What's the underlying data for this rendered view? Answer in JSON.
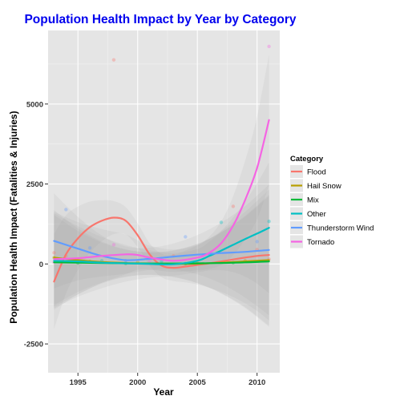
{
  "chart_data": {
    "type": "line",
    "title": "Population Health Impact by Year by Category",
    "xlabel": "Year",
    "ylabel": "Population Health Impact (Fatalities & Injuries)",
    "xlim": [
      1992.5,
      2011.9
    ],
    "ylim": [
      -3400,
      7300
    ],
    "xticks": [
      1995,
      2000,
      2005,
      2010
    ],
    "xtick_labels": [
      "1995",
      "2000",
      "2005",
      "2010"
    ],
    "yticks": [
      -2500,
      0,
      2500,
      5000
    ],
    "ytick_labels": [
      "-2500",
      "0",
      "2500",
      "5000"
    ],
    "grid": true,
    "legend": {
      "title": "Category",
      "placement": "right"
    },
    "series": [
      {
        "name": "Flood",
        "color": "#F8766D",
        "x": [
          1993,
          1994,
          1995,
          1996,
          1997,
          1998,
          1999,
          2000,
          2001,
          2002,
          2003,
          2004,
          2005,
          2006,
          2007,
          2008,
          2009,
          2010,
          2011
        ],
        "y": [
          -550,
          300,
          800,
          1150,
          1350,
          1450,
          1350,
          900,
          300,
          -50,
          -120,
          -80,
          -30,
          20,
          80,
          140,
          200,
          250,
          280
        ],
        "points": [
          [
            1993,
            350
          ],
          [
            1994,
            250
          ],
          [
            1998,
            6380
          ],
          [
            2003,
            250
          ],
          [
            2008,
            1800
          ],
          [
            2010,
            450
          ],
          [
            2011,
            150
          ]
        ]
      },
      {
        "name": "Hail Snow",
        "color": "#B79F00",
        "x": [
          1993,
          1995,
          1997,
          1999,
          2001,
          2003,
          2005,
          2007,
          2009,
          2011
        ],
        "y": [
          200,
          120,
          60,
          30,
          10,
          0,
          10,
          40,
          80,
          120
        ],
        "points": [
          [
            1993,
            200
          ],
          [
            1996,
            80
          ],
          [
            2000,
            50
          ],
          [
            2005,
            30
          ],
          [
            2009,
            100
          ]
        ]
      },
      {
        "name": "Mix",
        "color": "#00BA38",
        "x": [
          1993,
          1995,
          1997,
          1999,
          2001,
          2003,
          2005,
          2007,
          2009,
          2011
        ],
        "y": [
          50,
          40,
          30,
          20,
          15,
          15,
          20,
          30,
          50,
          80
        ],
        "points": [
          [
            1995,
            30
          ],
          [
            1999,
            20
          ],
          [
            2004,
            10
          ],
          [
            2008,
            40
          ]
        ]
      },
      {
        "name": "Other",
        "color": "#00BFC4",
        "x": [
          1993,
          1995,
          1997,
          1999,
          2001,
          2003,
          2005,
          2006,
          2007,
          2008,
          2009,
          2010,
          2011
        ],
        "y": [
          100,
          80,
          40,
          20,
          0,
          -10,
          100,
          250,
          420,
          600,
          780,
          950,
          1130
        ],
        "points": [
          [
            1997,
            100
          ],
          [
            2002,
            80
          ],
          [
            2007,
            1300
          ],
          [
            2011,
            1330
          ]
        ]
      },
      {
        "name": "Thunderstorm Wind",
        "color": "#619CFF",
        "x": [
          1993,
          1995,
          1997,
          1999,
          2001,
          2003,
          2005,
          2007,
          2009,
          2011
        ],
        "y": [
          720,
          480,
          250,
          120,
          160,
          230,
          290,
          340,
          380,
          440
        ],
        "points": [
          [
            1994,
            1700
          ],
          [
            1996,
            500
          ],
          [
            1999,
            100
          ],
          [
            2004,
            850
          ],
          [
            2010,
            700
          ]
        ]
      },
      {
        "name": "Tornado",
        "color": "#F564E3",
        "x": [
          1993,
          1995,
          1997,
          1999,
          2000,
          2001,
          2003,
          2005,
          2006,
          2007,
          2008,
          2009,
          2010,
          2011
        ],
        "y": [
          150,
          180,
          250,
          300,
          280,
          200,
          100,
          200,
          350,
          650,
          1200,
          2000,
          3000,
          4500
        ],
        "points": [
          [
            1993,
            50
          ],
          [
            1998,
            600
          ],
          [
            2001,
            100
          ],
          [
            2006,
            300
          ],
          [
            2011,
            6800
          ]
        ]
      }
    ]
  }
}
